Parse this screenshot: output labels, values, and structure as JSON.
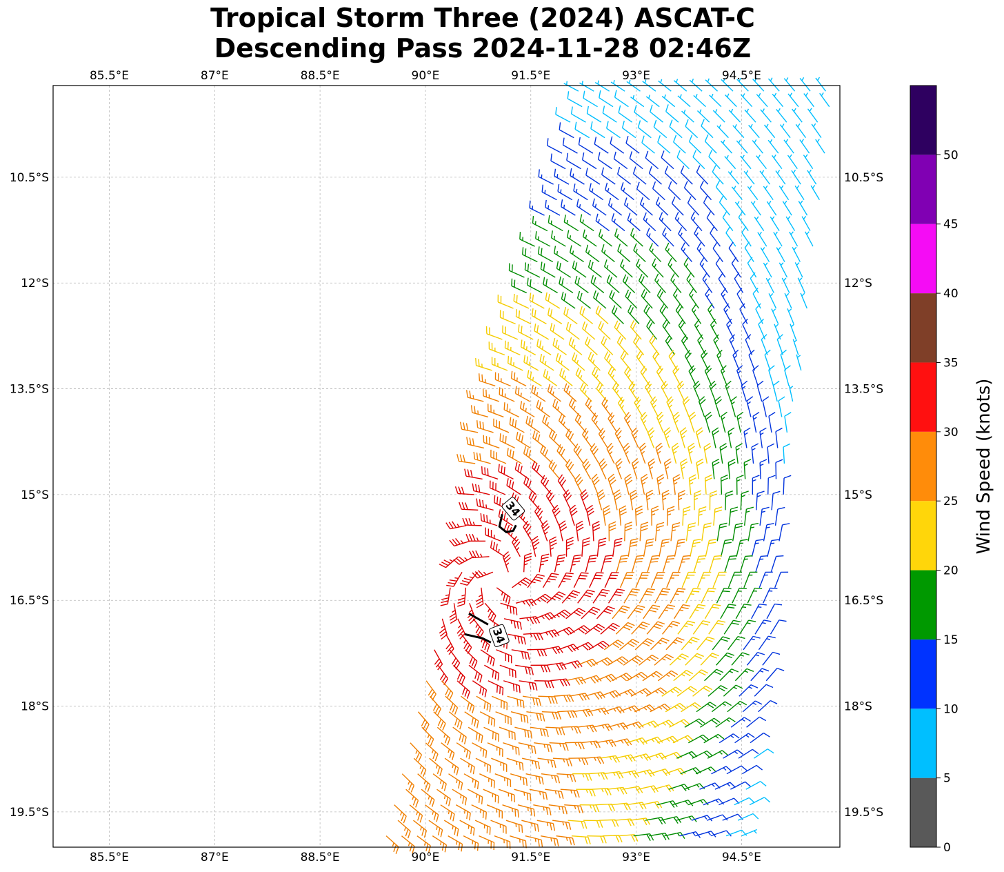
{
  "title": {
    "line1": "Tropical Storm Three (2024) ASCAT-C",
    "line2": "Descending Pass 2024-11-28 02:46Z"
  },
  "map": {
    "extent": {
      "lon_min": 84.7,
      "lon_max": 95.9,
      "lat_min": -20.0,
      "lat_max": -9.2
    },
    "lon_ticks": [
      {
        "value": 85.5,
        "label": "85.5°E"
      },
      {
        "value": 87.0,
        "label": "87°E"
      },
      {
        "value": 88.5,
        "label": "88.5°E"
      },
      {
        "value": 90.0,
        "label": "90°E"
      },
      {
        "value": 91.5,
        "label": "91.5°E"
      },
      {
        "value": 93.0,
        "label": "93°E"
      },
      {
        "value": 94.5,
        "label": "94.5°E"
      }
    ],
    "lat_ticks": [
      {
        "value": -10.5,
        "label": "10.5°S"
      },
      {
        "value": -12.0,
        "label": "12°S"
      },
      {
        "value": -13.5,
        "label": "13.5°S"
      },
      {
        "value": -15.0,
        "label": "15°S"
      },
      {
        "value": -16.5,
        "label": "16.5°S"
      },
      {
        "value": -18.0,
        "label": "18°S"
      },
      {
        "value": -19.5,
        "label": "19.5°S"
      }
    ],
    "gridlines": true,
    "storm_center": {
      "lon": 91.05,
      "lat": -16.2
    },
    "swath": {
      "top_lon_range": [
        92.2,
        95.8
      ],
      "bottom_lon_range": [
        89.4,
        94.6
      ],
      "top_lat": -9.2,
      "bottom_lat": -20.0,
      "west_edge_bulge_lon": 90.7,
      "west_edge_bulge_lat": -15.2
    },
    "contour_34kt": [
      {
        "label": "34",
        "lon": 91.25,
        "lat": -15.2
      },
      {
        "label": "34",
        "lon": 91.05,
        "lat": -17.0
      }
    ]
  },
  "colorbar": {
    "label": "Wind Speed (knots)",
    "min": 0,
    "max": 55,
    "bins": [
      {
        "from": 0,
        "to": 5,
        "color": "#595959"
      },
      {
        "from": 5,
        "to": 10,
        "color": "#00bfff"
      },
      {
        "from": 10,
        "to": 15,
        "color": "#0033ff"
      },
      {
        "from": 15,
        "to": 20,
        "color": "#009900"
      },
      {
        "from": 20,
        "to": 25,
        "color": "#ffd60a"
      },
      {
        "from": 25,
        "to": 30,
        "color": "#ff8c0a"
      },
      {
        "from": 30,
        "to": 35,
        "color": "#ff1010"
      },
      {
        "from": 35,
        "to": 40,
        "color": "#7f3f28"
      },
      {
        "from": 40,
        "to": 45,
        "color": "#f50cf5"
      },
      {
        "from": 45,
        "to": 50,
        "color": "#8000b3"
      },
      {
        "from": 50,
        "to": 55,
        "color": "#2e0060"
      }
    ],
    "ticks": [
      "0",
      "5",
      "10",
      "15",
      "20",
      "25",
      "30",
      "35",
      "40",
      "45",
      "50"
    ],
    "barb_colors": {
      "5-10": "#00bfff",
      "10-15": "#0033dd",
      "15-20": "#008c00",
      "20-25": "#f5cc00",
      "25-30": "#f07f00",
      "30-35": "#dd0000",
      "35-40": "#7f4026"
    }
  }
}
